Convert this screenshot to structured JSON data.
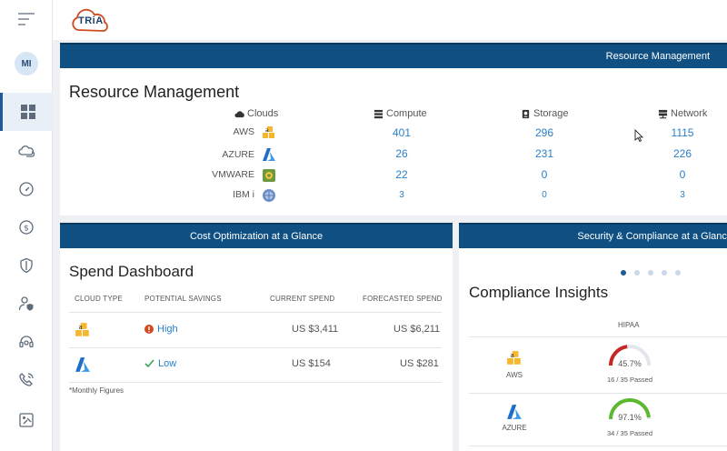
{
  "brand": {
    "logo_text": "TRiA"
  },
  "user": {
    "initials": "MI"
  },
  "nav": [
    {
      "icon": "dashboard-icon",
      "active": true
    },
    {
      "icon": "clouds-icon"
    },
    {
      "icon": "gauge-icon"
    },
    {
      "icon": "dollar-icon"
    },
    {
      "icon": "shield-icon"
    },
    {
      "icon": "user-shield-icon"
    },
    {
      "icon": "headset-icon"
    },
    {
      "icon": "phone-signal-icon"
    },
    {
      "icon": "report-icon"
    }
  ],
  "resource_management": {
    "header": "Resource Management",
    "title": "Resource Management",
    "columns": {
      "clouds": "Clouds",
      "compute": "Compute",
      "storage": "Storage",
      "network": "Network"
    },
    "rows": [
      {
        "name": "AWS",
        "icon": "aws-icon",
        "compute": "401",
        "storage": "296",
        "network": "1115"
      },
      {
        "name": "AZURE",
        "icon": "azure-icon",
        "compute": "26",
        "storage": "231",
        "network": "226"
      },
      {
        "name": "VMWARE",
        "icon": "vmware-icon",
        "compute": "22",
        "storage": "0",
        "network": "0"
      },
      {
        "name": "IBM i",
        "icon": "ibm-icon",
        "compute": "3",
        "storage": "0",
        "network": "3"
      }
    ]
  },
  "cost": {
    "header": "Cost Optimization at a Glance",
    "title": "Spend Dashboard",
    "columns": {
      "cloud_type": "CLOUD TYPE",
      "savings": "POTENTIAL SAVINGS",
      "current": "CURRENT SPEND",
      "forecast": "FORECASTED SPEND"
    },
    "rows": [
      {
        "icon": "aws-icon",
        "savings": "High",
        "savings_icon": "alert-icon",
        "current": "US $3,411",
        "forecast": "US $6,211"
      },
      {
        "icon": "azure-icon",
        "savings": "Low",
        "savings_icon": "check-icon",
        "current": "US $154",
        "forecast": "US $281"
      }
    ],
    "note": "*Monthly Figures"
  },
  "security": {
    "header": "Security & Compliance at a Glance",
    "title": "Compliance Insights",
    "standard": "HIPAA",
    "carousel": {
      "count": 5,
      "active": 0
    },
    "rows": [
      {
        "name": "AWS",
        "percent_label": "45.7%",
        "percent": 45.7,
        "passed": "16 / 35 Passed",
        "color": "#c62828"
      },
      {
        "name": "AZURE",
        "percent_label": "97.1%",
        "percent": 97.1,
        "passed": "34 / 35 Passed",
        "color": "#5cb82e"
      }
    ]
  },
  "colors": {
    "header": "#0f4f82",
    "link": "#2a7fc8",
    "high": "#d24b1f",
    "low": "#3aa35a"
  }
}
